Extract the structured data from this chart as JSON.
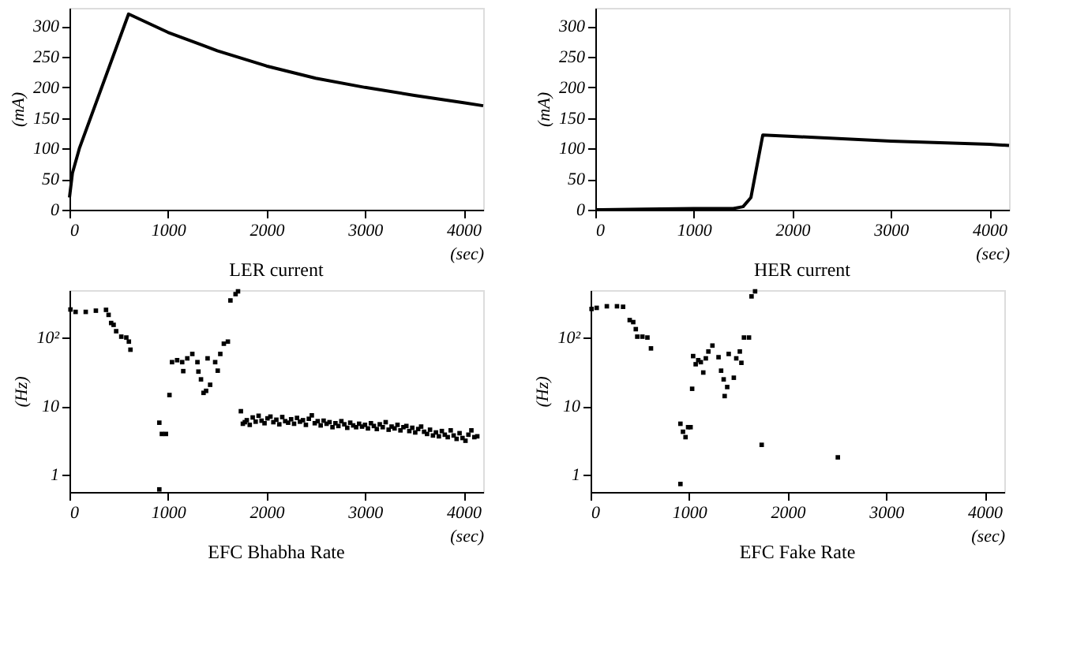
{
  "chart_data": [
    {
      "type": "line",
      "title": "LER current",
      "xlabel": "(sec)",
      "ylabel": "(mA)",
      "xlim": [
        0,
        4200
      ],
      "ylim": [
        0,
        330
      ],
      "xticks": [
        0,
        1000,
        2000,
        3000,
        4000
      ],
      "yticks": [
        0,
        50,
        100,
        150,
        200,
        250,
        300
      ],
      "grid": false,
      "series": [
        {
          "color": "#000000",
          "x": [
            0,
            30,
            100,
            600,
            1000,
            1500,
            2000,
            2500,
            3000,
            3500,
            4000,
            4200
          ],
          "values": [
            20,
            60,
            100,
            320,
            290,
            260,
            235,
            215,
            200,
            187,
            175,
            170
          ]
        }
      ]
    },
    {
      "type": "line",
      "title": "HER current",
      "xlabel": "(sec)",
      "ylabel": "(mA)",
      "xlim": [
        0,
        4200
      ],
      "ylim": [
        0,
        330
      ],
      "xticks": [
        0,
        1000,
        2000,
        3000,
        4000
      ],
      "yticks": [
        0,
        50,
        100,
        150,
        200,
        250,
        300
      ],
      "grid": false,
      "series": [
        {
          "color": "#000000",
          "x": [
            0,
            500,
            1000,
            1400,
            1500,
            1580,
            1700,
            2000,
            3000,
            4000,
            4200
          ],
          "values": [
            0,
            1,
            2,
            2,
            5,
            20,
            122,
            120,
            112,
            107,
            105
          ]
        }
      ]
    },
    {
      "type": "scatter",
      "title": "EFC Bhabha Rate",
      "xlabel": "(sec)",
      "ylabel": "(Hz)",
      "log": "y",
      "marker": "square",
      "xlim": [
        0,
        4200
      ],
      "ylim": [
        0.55,
        500
      ],
      "xticks": [
        0,
        1000,
        2000,
        3000,
        4000
      ],
      "yticks": [
        1,
        10,
        {
          "value": 100,
          "label": "10²"
        }
      ],
      "grid": false,
      "series": [
        {
          "color": "#000000",
          "x": [
            10,
            62,
            165,
            268,
            371,
            397,
            423,
            448,
            474,
            526,
            577,
            603,
            619,
            912,
            912,
            938,
            979,
            1015,
            1041,
            1093,
            1144,
            1155,
            1196,
            1247,
            1299,
            1309,
            1335,
            1361,
            1387,
            1402,
            1428,
            1479,
            1505,
            1531,
            1567,
            1608,
            1634,
            1686,
            1711,
            1740,
            1760,
            1780,
            1800,
            1830,
            1860,
            1890,
            1920,
            1950,
            1980,
            2010,
            2040,
            2070,
            2100,
            2130,
            2160,
            2190,
            2220,
            2250,
            2280,
            2310,
            2340,
            2370,
            2400,
            2430,
            2460,
            2490,
            2520,
            2550,
            2580,
            2610,
            2640,
            2670,
            2700,
            2730,
            2760,
            2790,
            2820,
            2850,
            2880,
            2910,
            2940,
            2970,
            3000,
            3030,
            3060,
            3090,
            3120,
            3150,
            3180,
            3210,
            3240,
            3270,
            3300,
            3330,
            3360,
            3390,
            3420,
            3450,
            3480,
            3510,
            3540,
            3570,
            3600,
            3630,
            3660,
            3690,
            3720,
            3750,
            3780,
            3810,
            3840,
            3870,
            3900,
            3930,
            3960,
            3990,
            4020,
            4050,
            4080,
            4110,
            4140
          ],
          "values": [
            260,
            240,
            240,
            250,
            257,
            217,
            165,
            155,
            125,
            104,
            101,
            88,
            67,
            5.7,
            0.6,
            3.9,
            3.9,
            14.5,
            44,
            47,
            44,
            32.5,
            50,
            58,
            44,
            32,
            24.6,
            15.6,
            16.7,
            50,
            20.5,
            44,
            33,
            58,
            82,
            88,
            353,
            437,
            480,
            8.4,
            5.5,
            5.8,
            6.2,
            5.3,
            6.8,
            5.9,
            7.2,
            6.1,
            5.6,
            6.6,
            7.0,
            5.8,
            6.3,
            5.4,
            6.9,
            6.0,
            5.7,
            6.4,
            5.5,
            6.7,
            5.9,
            6.2,
            5.3,
            6.5,
            7.3,
            5.6,
            6.0,
            5.2,
            6.1,
            5.5,
            5.8,
            4.9,
            5.6,
            5.1,
            6.0,
            5.4,
            4.8,
            5.7,
            5.2,
            4.9,
            5.5,
            5.0,
            5.3,
            4.7,
            5.6,
            5.1,
            4.6,
            5.4,
            4.9,
            5.8,
            4.5,
            5.0,
            4.7,
            5.3,
            4.4,
            4.9,
            5.1,
            4.3,
            4.8,
            4.1,
            4.6,
            5.0,
            4.2,
            3.9,
            4.5,
            3.7,
            4.1,
            3.6,
            4.3,
            3.8,
            3.5,
            4.4,
            3.7,
            3.3,
            4.0,
            3.4,
            3.1,
            3.8,
            4.4,
            3.5,
            3.6
          ]
        }
      ]
    },
    {
      "type": "scatter",
      "title": "EFC Fake Rate",
      "xlabel": "(sec)",
      "ylabel": "(Hz)",
      "log": "y",
      "marker": "square",
      "xlim": [
        0,
        4200
      ],
      "ylim": [
        0.55,
        500
      ],
      "xticks": [
        0,
        1000,
        2000,
        3000,
        4000
      ],
      "yticks": [
        1,
        10,
        {
          "value": 100,
          "label": "10²"
        }
      ],
      "grid": false,
      "series": [
        {
          "color": "#000000",
          "x": [
            10,
            62,
            165,
            268,
            330,
            397,
            433,
            459,
            474,
            526,
            577,
            613,
            912,
            912,
            938,
            964,
            990,
            1015,
            1031,
            1041,
            1067,
            1093,
            1119,
            1144,
            1170,
            1196,
            1237,
            1299,
            1325,
            1351,
            1361,
            1387,
            1402,
            1454,
            1479,
            1515,
            1531,
            1557,
            1608,
            1634,
            1670,
            1737,
            2510
          ],
          "values": [
            265,
            275,
            290,
            290,
            285,
            182,
            170,
            134,
            104,
            104,
            101,
            70,
            0.72,
            5.5,
            4.2,
            3.5,
            4.9,
            4.9,
            17.9,
            54,
            41,
            47,
            44,
            31,
            50,
            63,
            77,
            52,
            33,
            24.6,
            14,
            19,
            58,
            26,
            50,
            63,
            43,
            101,
            101,
            405,
            480,
            2.7,
            1.77
          ]
        }
      ]
    }
  ]
}
